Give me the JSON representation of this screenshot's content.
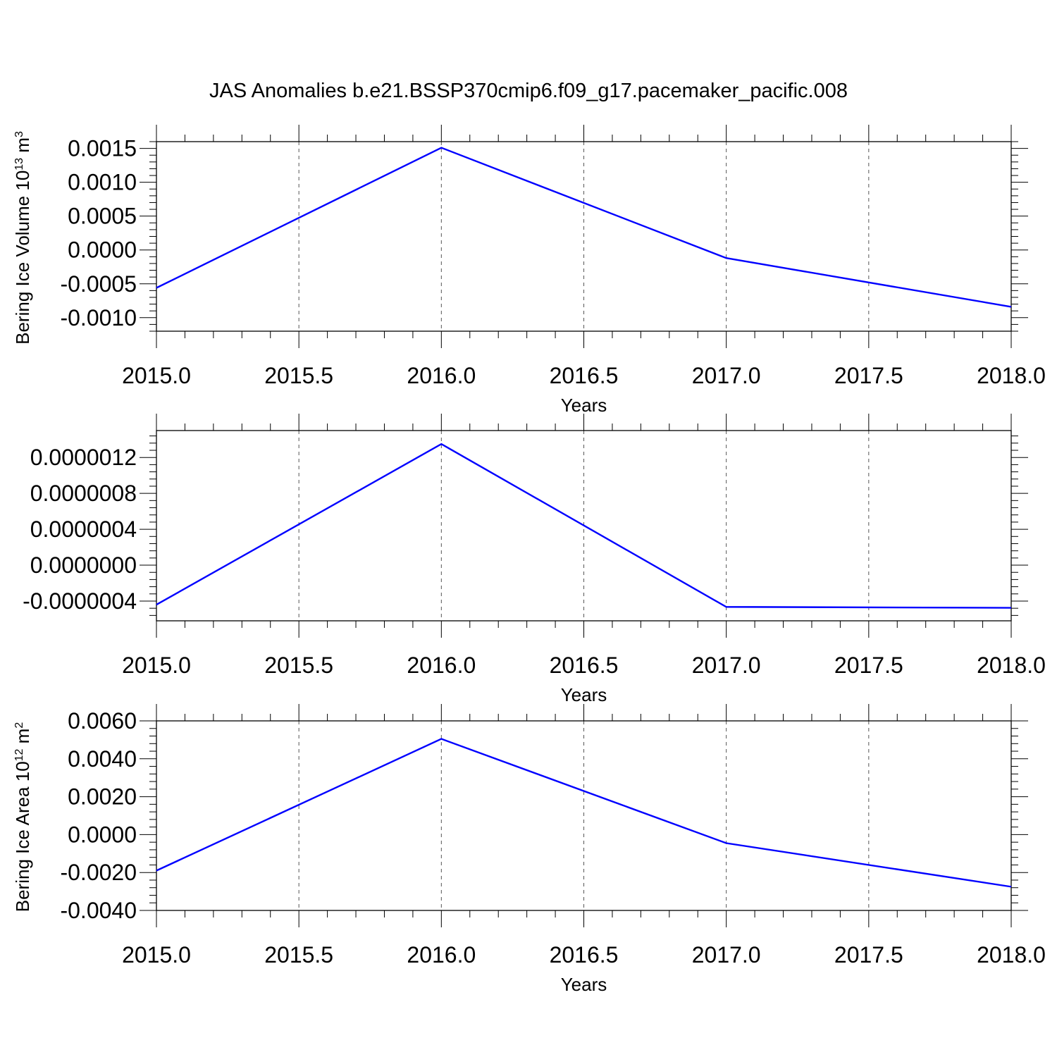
{
  "figure": {
    "title": "JAS Anomalies b.e21.BSSP370cmip6.f09_g17.pacemaker_pacific.008"
  },
  "chart_data": [
    {
      "type": "line",
      "x": [
        2015,
        2016,
        2017,
        2018
      ],
      "series": [
        {
          "values": [
            -0.00056,
            0.00151,
            -0.00012,
            -0.00084
          ],
          "color": "#0000ff"
        }
      ],
      "xlabel": "Years",
      "ylabel": "Bering Ice Volume 10",
      "ylabel_sup": "13",
      "ylabel_unit": " m",
      "ylabel_unit_sup": "3",
      "xlim": [
        2015,
        2018
      ],
      "ylim": [
        -0.0012,
        0.0016
      ],
      "xticks": [
        2015.0,
        2015.5,
        2016.0,
        2016.5,
        2017.0,
        2017.5,
        2018.0
      ],
      "xtick_labels": [
        "2015.0",
        "2015.5",
        "2016.0",
        "2016.5",
        "2017.0",
        "2017.5",
        "2018.0"
      ],
      "yticks": [
        -0.001,
        -0.0005,
        0.0,
        0.0005,
        0.001,
        0.0015
      ],
      "ytick_labels": [
        "-0.0010",
        "-0.0005",
        "0.0000",
        "0.0005",
        "0.0010",
        "0.0015"
      ],
      "x_grid": "dashed"
    },
    {
      "type": "line",
      "x": [
        2015,
        2016,
        2017,
        2018
      ],
      "series": [
        {
          "values": [
            -4.4e-07,
            1.35e-06,
            -4.65e-07,
            -4.75e-07
          ],
          "color": "#0000ff"
        }
      ],
      "xlabel": "Years",
      "ylabel": "",
      "xlim": [
        2015,
        2018
      ],
      "ylim": [
        -6.2e-07,
        1.5e-06
      ],
      "xticks": [
        2015.0,
        2015.5,
        2016.0,
        2016.5,
        2017.0,
        2017.5,
        2018.0
      ],
      "xtick_labels": [
        "2015.0",
        "2015.5",
        "2016.0",
        "2016.5",
        "2017.0",
        "2017.5",
        "2018.0"
      ],
      "yticks": [
        -4e-07,
        0.0,
        4e-07,
        8e-07,
        1.2e-06
      ],
      "ytick_labels": [
        "-0.0000004",
        "0.0000000",
        "0.0000004",
        "0.0000008",
        "0.0000012"
      ],
      "x_grid": "dashed"
    },
    {
      "type": "line",
      "x": [
        2015,
        2016,
        2017,
        2018
      ],
      "series": [
        {
          "values": [
            -0.0019,
            0.00505,
            -0.00045,
            -0.00275
          ],
          "color": "#0000ff"
        }
      ],
      "xlabel": "Years",
      "ylabel": "Bering Ice Area 10",
      "ylabel_sup": "12",
      "ylabel_unit": " m",
      "ylabel_unit_sup": "2",
      "xlim": [
        2015,
        2018
      ],
      "ylim": [
        -0.004,
        0.006
      ],
      "xticks": [
        2015.0,
        2015.5,
        2016.0,
        2016.5,
        2017.0,
        2017.5,
        2018.0
      ],
      "xtick_labels": [
        "2015.0",
        "2015.5",
        "2016.0",
        "2016.5",
        "2017.0",
        "2017.5",
        "2018.0"
      ],
      "yticks": [
        -0.004,
        -0.002,
        0.0,
        0.002,
        0.004,
        0.006
      ],
      "ytick_labels": [
        "-0.0040",
        "-0.0020",
        "0.0000",
        "0.0020",
        "0.0040",
        "0.0060"
      ],
      "x_grid": "dashed"
    }
  ]
}
